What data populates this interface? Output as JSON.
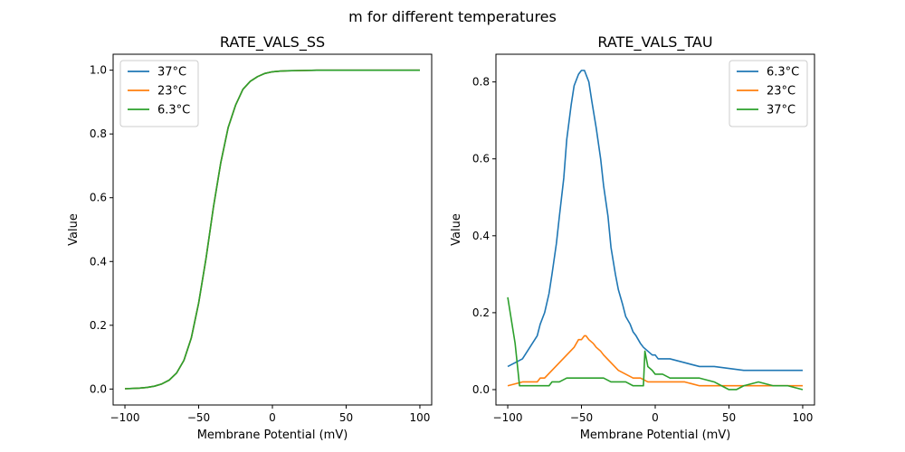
{
  "figure": {
    "suptitle": "m for different temperatures"
  },
  "chart_data": [
    {
      "type": "line",
      "title": "RATE_VALS_SS",
      "xlabel": "Membrane Potential (mV)",
      "ylabel": "Value",
      "xlim": [
        -108,
        108
      ],
      "ylim": [
        -0.05,
        1.05
      ],
      "xticks": [
        -100,
        -50,
        0,
        50,
        100
      ],
      "yticks": [
        0.0,
        0.2,
        0.4,
        0.6,
        0.8,
        1.0
      ],
      "ytick_labels": [
        "0.0",
        "0.2",
        "0.4",
        "0.6",
        "0.8",
        "1.0"
      ],
      "legend_position": "top-left",
      "x": [
        -100,
        -95,
        -90,
        -85,
        -80,
        -75,
        -70,
        -65,
        -60,
        -55,
        -50,
        -45,
        -40,
        -35,
        -30,
        -25,
        -20,
        -15,
        -10,
        -5,
        0,
        5,
        10,
        20,
        30,
        40,
        50,
        60,
        70,
        80,
        90,
        100
      ],
      "series": [
        {
          "name": "37°C",
          "color": "#1f77b4",
          "values": [
            0.001,
            0.002,
            0.003,
            0.005,
            0.009,
            0.016,
            0.028,
            0.05,
            0.09,
            0.16,
            0.27,
            0.41,
            0.57,
            0.71,
            0.82,
            0.89,
            0.94,
            0.965,
            0.98,
            0.99,
            0.995,
            0.997,
            0.998,
            0.999,
            1.0,
            1.0,
            1.0,
            1.0,
            1.0,
            1.0,
            1.0,
            1.0
          ]
        },
        {
          "name": "23°C",
          "color": "#ff7f0e",
          "values": [
            0.001,
            0.002,
            0.003,
            0.005,
            0.009,
            0.016,
            0.028,
            0.05,
            0.09,
            0.16,
            0.27,
            0.41,
            0.57,
            0.71,
            0.82,
            0.89,
            0.94,
            0.965,
            0.98,
            0.99,
            0.995,
            0.997,
            0.998,
            0.999,
            1.0,
            1.0,
            1.0,
            1.0,
            1.0,
            1.0,
            1.0,
            1.0
          ]
        },
        {
          "name": "6.3°C",
          "color": "#2ca02c",
          "values": [
            0.001,
            0.002,
            0.003,
            0.005,
            0.009,
            0.016,
            0.028,
            0.05,
            0.09,
            0.16,
            0.27,
            0.41,
            0.57,
            0.71,
            0.82,
            0.89,
            0.94,
            0.965,
            0.98,
            0.99,
            0.995,
            0.997,
            0.998,
            0.999,
            1.0,
            1.0,
            1.0,
            1.0,
            1.0,
            1.0,
            1.0,
            1.0
          ]
        }
      ]
    },
    {
      "type": "line",
      "title": "RATE_VALS_TAU",
      "xlabel": "Membrane Potential (mV)",
      "ylabel": "Value",
      "xlim": [
        -108,
        108
      ],
      "ylim": [
        -0.04,
        0.872
      ],
      "xticks": [
        -100,
        -50,
        0,
        50,
        100
      ],
      "yticks": [
        0.0,
        0.2,
        0.4,
        0.6,
        0.8
      ],
      "ytick_labels": [
        "0.0",
        "0.2",
        "0.4",
        "0.6",
        "0.8"
      ],
      "legend_position": "top-right",
      "series": [
        {
          "name": "6.3°C",
          "color": "#1f77b4",
          "x": [
            -100,
            -95,
            -90,
            -85,
            -80,
            -78,
            -75,
            -72,
            -70,
            -67,
            -65,
            -62,
            -60,
            -57,
            -55,
            -52,
            -50,
            -48,
            -47,
            -45,
            -43,
            -40,
            -37,
            -35,
            -32,
            -30,
            -27,
            -25,
            -22,
            -20,
            -17,
            -15,
            -13,
            -10,
            -8,
            -5,
            -2,
            0,
            2,
            5,
            8,
            10,
            15,
            20,
            30,
            40,
            50,
            60,
            70,
            80,
            90,
            100
          ],
          "values": [
            0.06,
            0.07,
            0.08,
            0.11,
            0.14,
            0.17,
            0.2,
            0.25,
            0.3,
            0.38,
            0.45,
            0.55,
            0.65,
            0.74,
            0.79,
            0.82,
            0.83,
            0.83,
            0.82,
            0.8,
            0.75,
            0.68,
            0.6,
            0.53,
            0.45,
            0.37,
            0.3,
            0.26,
            0.22,
            0.19,
            0.17,
            0.15,
            0.14,
            0.12,
            0.11,
            0.1,
            0.09,
            0.09,
            0.08,
            0.08,
            0.08,
            0.08,
            0.075,
            0.07,
            0.06,
            0.06,
            0.055,
            0.05,
            0.05,
            0.05,
            0.05,
            0.05
          ]
        },
        {
          "name": "23°C",
          "color": "#ff7f0e",
          "x": [
            -100,
            -95,
            -90,
            -85,
            -80,
            -78,
            -75,
            -70,
            -65,
            -60,
            -55,
            -52,
            -50,
            -48,
            -47,
            -45,
            -42,
            -40,
            -37,
            -35,
            -30,
            -25,
            -20,
            -15,
            -10,
            -5,
            0,
            10,
            20,
            30,
            40,
            50,
            60,
            70,
            80,
            90,
            100
          ],
          "values": [
            0.01,
            0.015,
            0.02,
            0.02,
            0.02,
            0.03,
            0.03,
            0.05,
            0.07,
            0.09,
            0.11,
            0.13,
            0.13,
            0.14,
            0.14,
            0.13,
            0.12,
            0.11,
            0.1,
            0.09,
            0.07,
            0.05,
            0.04,
            0.03,
            0.03,
            0.02,
            0.02,
            0.02,
            0.02,
            0.01,
            0.01,
            0.01,
            0.01,
            0.01,
            0.01,
            0.01,
            0.01
          ]
        },
        {
          "name": "37°C",
          "color": "#2ca02c",
          "x": [
            -100,
            -95,
            -92,
            -90,
            -85,
            -80,
            -75,
            -72,
            -70,
            -65,
            -60,
            -55,
            -50,
            -45,
            -40,
            -35,
            -30,
            -25,
            -20,
            -15,
            -10,
            -8,
            -7,
            -5,
            -2,
            0,
            5,
            10,
            20,
            30,
            40,
            45,
            50,
            55,
            60,
            70,
            80,
            90,
            100
          ],
          "values": [
            0.24,
            0.12,
            0.01,
            0.01,
            0.01,
            0.01,
            0.01,
            0.01,
            0.02,
            0.02,
            0.03,
            0.03,
            0.03,
            0.03,
            0.03,
            0.03,
            0.02,
            0.02,
            0.02,
            0.01,
            0.01,
            0.01,
            0.1,
            0.06,
            0.05,
            0.04,
            0.04,
            0.03,
            0.03,
            0.03,
            0.02,
            0.01,
            0.0,
            0.0,
            0.01,
            0.02,
            0.01,
            0.01,
            0.0
          ]
        }
      ]
    }
  ]
}
